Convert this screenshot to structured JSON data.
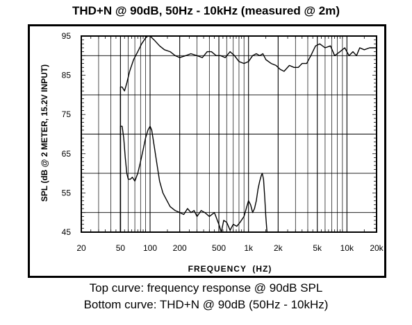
{
  "header": {
    "title": "THD+N @ 90dB, 50Hz - 10kHz (measured @ 2m)"
  },
  "captions": {
    "line1": "Top curve: frequency response @ 90dB SPL",
    "line2": "Bottom curve: THD+N @ 90dB (50Hz - 10kHz)"
  },
  "chart_data": {
    "type": "line",
    "title": "THD+N @ 90dB, 50Hz - 10kHz (measured @ 2m)",
    "xlabel": "FREQUENCY  (HZ)",
    "ylabel": "SPL (dB @ 2 METER, 15.2V INPUT)",
    "x_scale": "log",
    "xlim": [
      20,
      20000
    ],
    "ylim": [
      45,
      95
    ],
    "grid": true,
    "x_ticks": [
      {
        "value": 20,
        "label": "20"
      },
      {
        "value": 50,
        "label": "50"
      },
      {
        "value": 100,
        "label": "100"
      },
      {
        "value": 200,
        "label": "200"
      },
      {
        "value": 500,
        "label": "500"
      },
      {
        "value": 1000,
        "label": "1k"
      },
      {
        "value": 2000,
        "label": "2k"
      },
      {
        "value": 5000,
        "label": "5k"
      },
      {
        "value": 10000,
        "label": "10k"
      },
      {
        "value": 20000,
        "label": "20k"
      }
    ],
    "y_ticks": [
      {
        "value": 95,
        "label": "95"
      },
      {
        "value": 85,
        "label": "85"
      },
      {
        "value": 75,
        "label": "75"
      },
      {
        "value": 65,
        "label": "65"
      },
      {
        "value": 55,
        "label": "55"
      },
      {
        "value": 45,
        "label": "45"
      }
    ],
    "series": [
      {
        "points": [
          [
            50,
            45
          ],
          [
            50,
            82
          ],
          [
            52,
            82
          ],
          [
            55,
            81
          ],
          [
            58,
            83
          ],
          [
            62,
            86
          ],
          [
            68,
            89
          ],
          [
            75,
            91
          ],
          [
            82,
            93
          ],
          [
            90,
            94.5
          ],
          [
            95,
            95
          ],
          [
            100,
            95
          ],
          [
            110,
            94
          ],
          [
            125,
            92.5
          ],
          [
            140,
            91.5
          ],
          [
            160,
            91
          ],
          [
            180,
            90
          ],
          [
            200,
            89.5
          ],
          [
            230,
            90
          ],
          [
            260,
            90.5
          ],
          [
            300,
            90
          ],
          [
            340,
            89.5
          ],
          [
            380,
            91
          ],
          [
            420,
            91
          ],
          [
            470,
            90
          ],
          [
            520,
            90
          ],
          [
            580,
            89.5
          ],
          [
            650,
            91
          ],
          [
            720,
            90
          ],
          [
            800,
            88.5
          ],
          [
            900,
            88
          ],
          [
            1000,
            88.5
          ],
          [
            1100,
            90
          ],
          [
            1200,
            90.5
          ],
          [
            1300,
            90
          ],
          [
            1400,
            90.5
          ],
          [
            1500,
            89
          ],
          [
            1700,
            88
          ],
          [
            1900,
            87.5
          ],
          [
            2100,
            86.5
          ],
          [
            2300,
            86
          ],
          [
            2600,
            87.5
          ],
          [
            2900,
            87
          ],
          [
            3200,
            87
          ],
          [
            3500,
            88
          ],
          [
            3900,
            88
          ],
          [
            4300,
            90
          ],
          [
            4800,
            92.5
          ],
          [
            5300,
            93
          ],
          [
            6000,
            92
          ],
          [
            6800,
            92.5
          ],
          [
            7500,
            90
          ],
          [
            8500,
            91
          ],
          [
            9500,
            92
          ],
          [
            10500,
            90
          ],
          [
            11500,
            91
          ],
          [
            12500,
            90
          ],
          [
            13500,
            92
          ],
          [
            15000,
            91.5
          ],
          [
            17000,
            92
          ],
          [
            20000,
            92
          ]
        ]
      },
      {
        "points": [
          [
            50,
            45
          ],
          [
            50,
            72
          ],
          [
            52,
            72
          ],
          [
            54,
            69
          ],
          [
            56,
            64
          ],
          [
            58,
            60
          ],
          [
            60,
            58.5
          ],
          [
            63,
            58.5
          ],
          [
            66,
            59
          ],
          [
            70,
            58
          ],
          [
            75,
            60
          ],
          [
            80,
            63
          ],
          [
            85,
            66
          ],
          [
            90,
            69
          ],
          [
            95,
            71
          ],
          [
            100,
            72
          ],
          [
            104,
            71
          ],
          [
            110,
            67
          ],
          [
            118,
            62
          ],
          [
            125,
            58
          ],
          [
            135,
            55
          ],
          [
            145,
            53.5
          ],
          [
            160,
            51.5
          ],
          [
            180,
            50.5
          ],
          [
            200,
            50
          ],
          [
            220,
            49.5
          ],
          [
            240,
            51
          ],
          [
            260,
            50
          ],
          [
            280,
            50.5
          ],
          [
            300,
            49
          ],
          [
            330,
            50.5
          ],
          [
            360,
            50
          ],
          [
            400,
            49
          ],
          [
            450,
            50
          ],
          [
            500,
            47
          ],
          [
            530,
            45
          ],
          [
            560,
            48
          ],
          [
            600,
            47.5
          ],
          [
            650,
            45.5
          ],
          [
            700,
            47
          ],
          [
            760,
            46.5
          ],
          [
            820,
            47.5
          ],
          [
            900,
            49
          ],
          [
            960,
            51.5
          ],
          [
            1000,
            53
          ],
          [
            1050,
            52
          ],
          [
            1100,
            50
          ],
          [
            1150,
            51
          ],
          [
            1200,
            53
          ],
          [
            1250,
            56
          ],
          [
            1300,
            58
          ],
          [
            1350,
            59.5
          ],
          [
            1380,
            60
          ],
          [
            1420,
            58.5
          ],
          [
            1460,
            54
          ],
          [
            1500,
            49
          ],
          [
            1540,
            45
          ],
          [
            1600,
            45
          ]
        ]
      }
    ]
  }
}
